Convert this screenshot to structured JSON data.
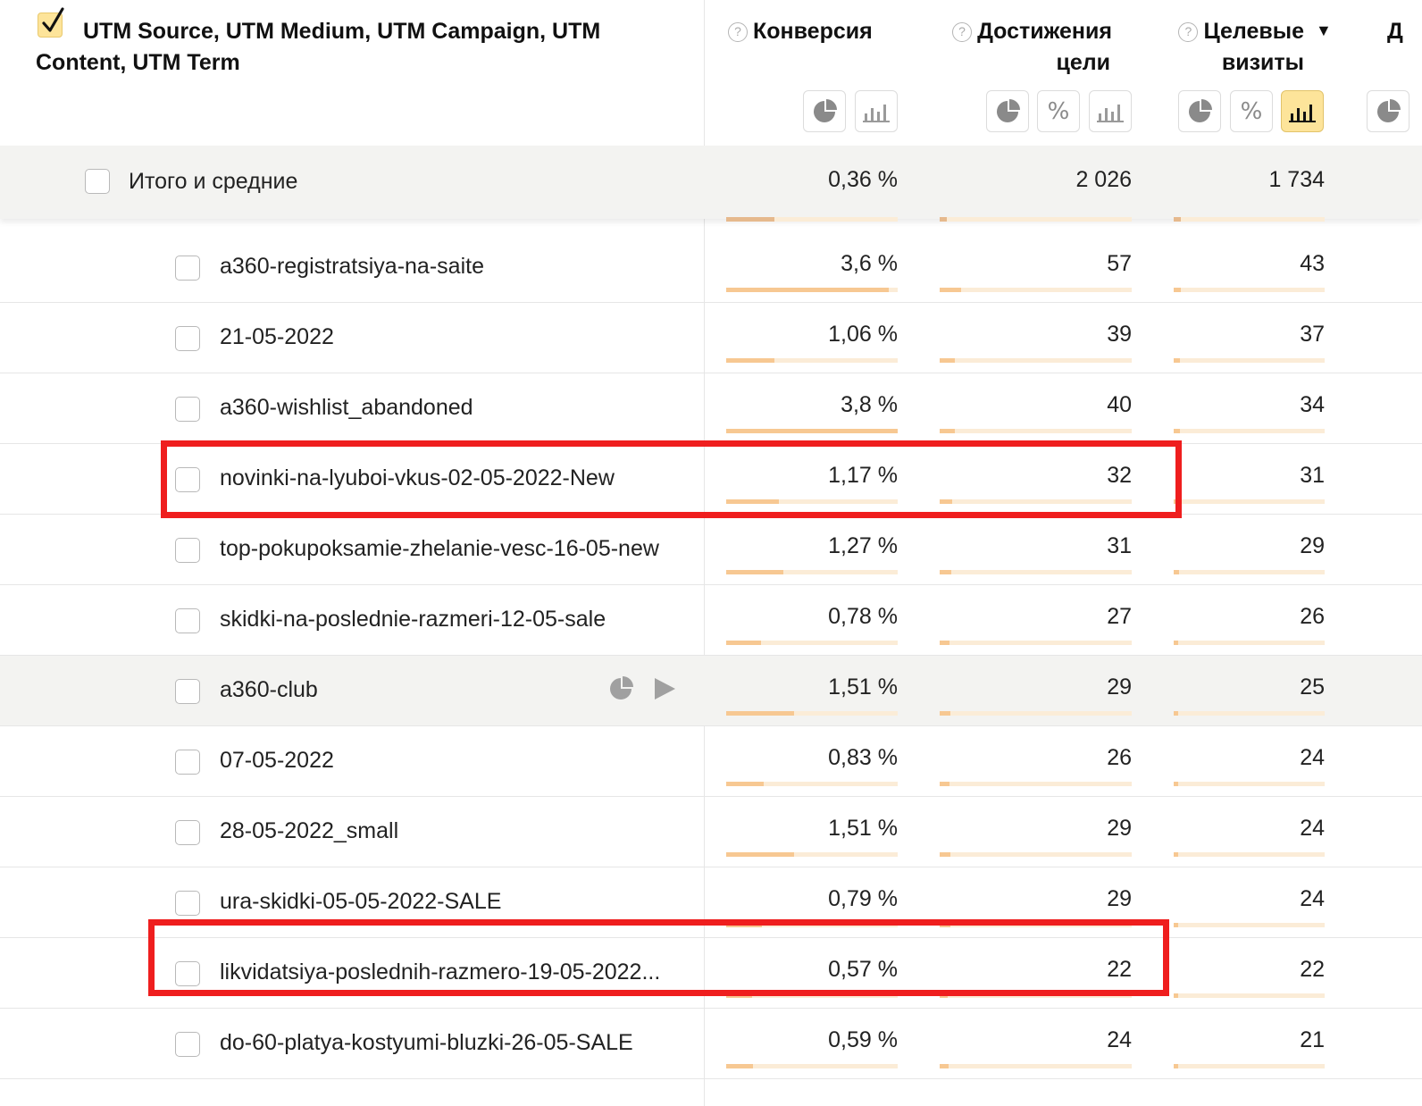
{
  "header": {
    "dimension_title": "UTM Source, UTM Medium, UTM Campaign, UTM Content, UTM Term",
    "help_glyph": "?",
    "metrics": [
      {
        "label_line1": "Конверсия",
        "label_line2": ""
      },
      {
        "label_line1": "Достижения",
        "label_line2": "цели"
      },
      {
        "label_line1": "Целевые",
        "label_line2": "визиты",
        "sorted": "descending"
      },
      {
        "label_line1": "Д",
        "label_line2": ""
      }
    ],
    "sort_glyph": "▼",
    "percent_glyph": "%",
    "chart_buttons": {
      "conversion": [
        "pie-chart-icon",
        "bar-chart-icon"
      ],
      "goal_reaches": [
        "pie-chart-icon",
        "percent-icon",
        "bar-chart-icon"
      ],
      "target_visits": [
        "pie-chart-icon",
        "percent-icon",
        "bar-chart-icon (active)"
      ]
    }
  },
  "totals": {
    "label": "Итого и средние",
    "conversion": "0,36 %",
    "goal_reaches": "2 026",
    "target_visits": "1 734"
  },
  "rows": [
    {
      "name": "a360-registratsiya-na-saite",
      "conversion": "3,6 %",
      "goal_reaches": "57",
      "target_visits": "43"
    },
    {
      "name": "21-05-2022",
      "conversion": "1,06 %",
      "goal_reaches": "39",
      "target_visits": "37"
    },
    {
      "name": "a360-wishlist_abandoned",
      "conversion": "3,8 %",
      "goal_reaches": "40",
      "target_visits": "34"
    },
    {
      "name": "novinki-na-lyuboi-vkus-02-05-2022-New",
      "conversion": "1,17 %",
      "goal_reaches": "32",
      "target_visits": "31",
      "highlighted": true
    },
    {
      "name": "top-pokupoksamie-zhelanie-vesc-16-05-new",
      "conversion": "1,27 %",
      "goal_reaches": "31",
      "target_visits": "29"
    },
    {
      "name": "skidki-na-poslednie-razmeri-12-05-sale",
      "conversion": "0,78 %",
      "goal_reaches": "27",
      "target_visits": "26"
    },
    {
      "name": "a360-club",
      "conversion": "1,51 %",
      "goal_reaches": "29",
      "target_visits": "25",
      "hovered": true
    },
    {
      "name": "07-05-2022",
      "conversion": "0,83 %",
      "goal_reaches": "26",
      "target_visits": "24"
    },
    {
      "name": "28-05-2022_small",
      "conversion": "1,51 %",
      "goal_reaches": "29",
      "target_visits": "24"
    },
    {
      "name": "ura-skidki-05-05-2022-SALE",
      "conversion": "0,79 %",
      "goal_reaches": "29",
      "target_visits": "24"
    },
    {
      "name": "likvidatsiya-poslednih-razmero-19-05-2022...",
      "conversion": "0,57 %",
      "goal_reaches": "22",
      "target_visits": "22",
      "highlighted": true
    },
    {
      "name": "do-60-platya-kostyumi-bluzki-26-05-SALE",
      "conversion": "0,59 %",
      "goal_reaches": "24",
      "target_visits": "21"
    }
  ],
  "colors": {
    "accent_button": "#fde49a",
    "bar_fill": "#f7c892",
    "bar_track": "#fbecd7",
    "highlight_frame": "#ef1e1e",
    "totals_background": "#f3f3f1"
  }
}
